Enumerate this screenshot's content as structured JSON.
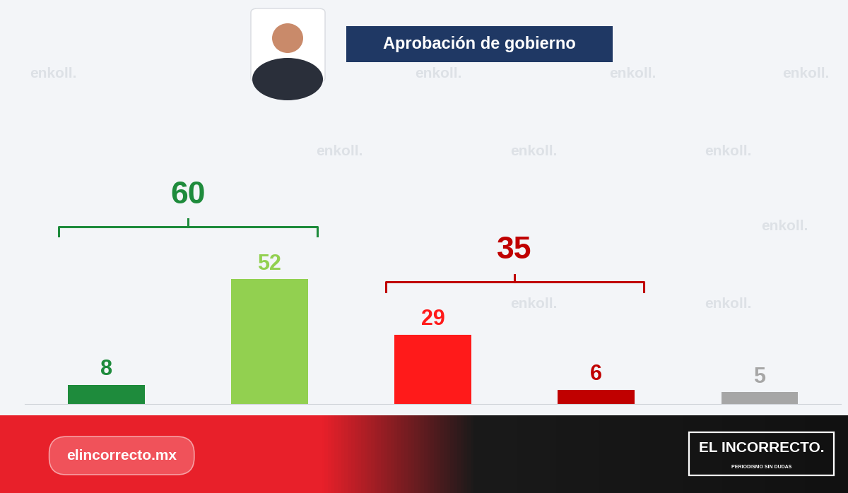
{
  "chart_data": {
    "type": "bar",
    "title": "Aprobación de gobierno",
    "categories": [
      null,
      null,
      null,
      null,
      null
    ],
    "values": [
      8,
      52,
      29,
      6,
      5
    ],
    "colors": [
      "#1e8b3c",
      "#92d050",
      "#ff1a1a",
      "#c00000",
      "#a6a6a6"
    ],
    "ylim": [
      0,
      110
    ],
    "data_labels": true,
    "tick_labels": false,
    "grid": false,
    "groups": [
      {
        "value": 60,
        "color": "#1e8b3c",
        "span": [
          0,
          1
        ]
      },
      {
        "value": 35,
        "color": "#c00000",
        "span": [
          2,
          3
        ]
      }
    ]
  },
  "watermark": "enkoll.",
  "footer": {
    "site": "elincorrecto.mx",
    "logo": "EL INCORRECTO.",
    "slogan": "PERIODISMO SIN DUDAS"
  }
}
